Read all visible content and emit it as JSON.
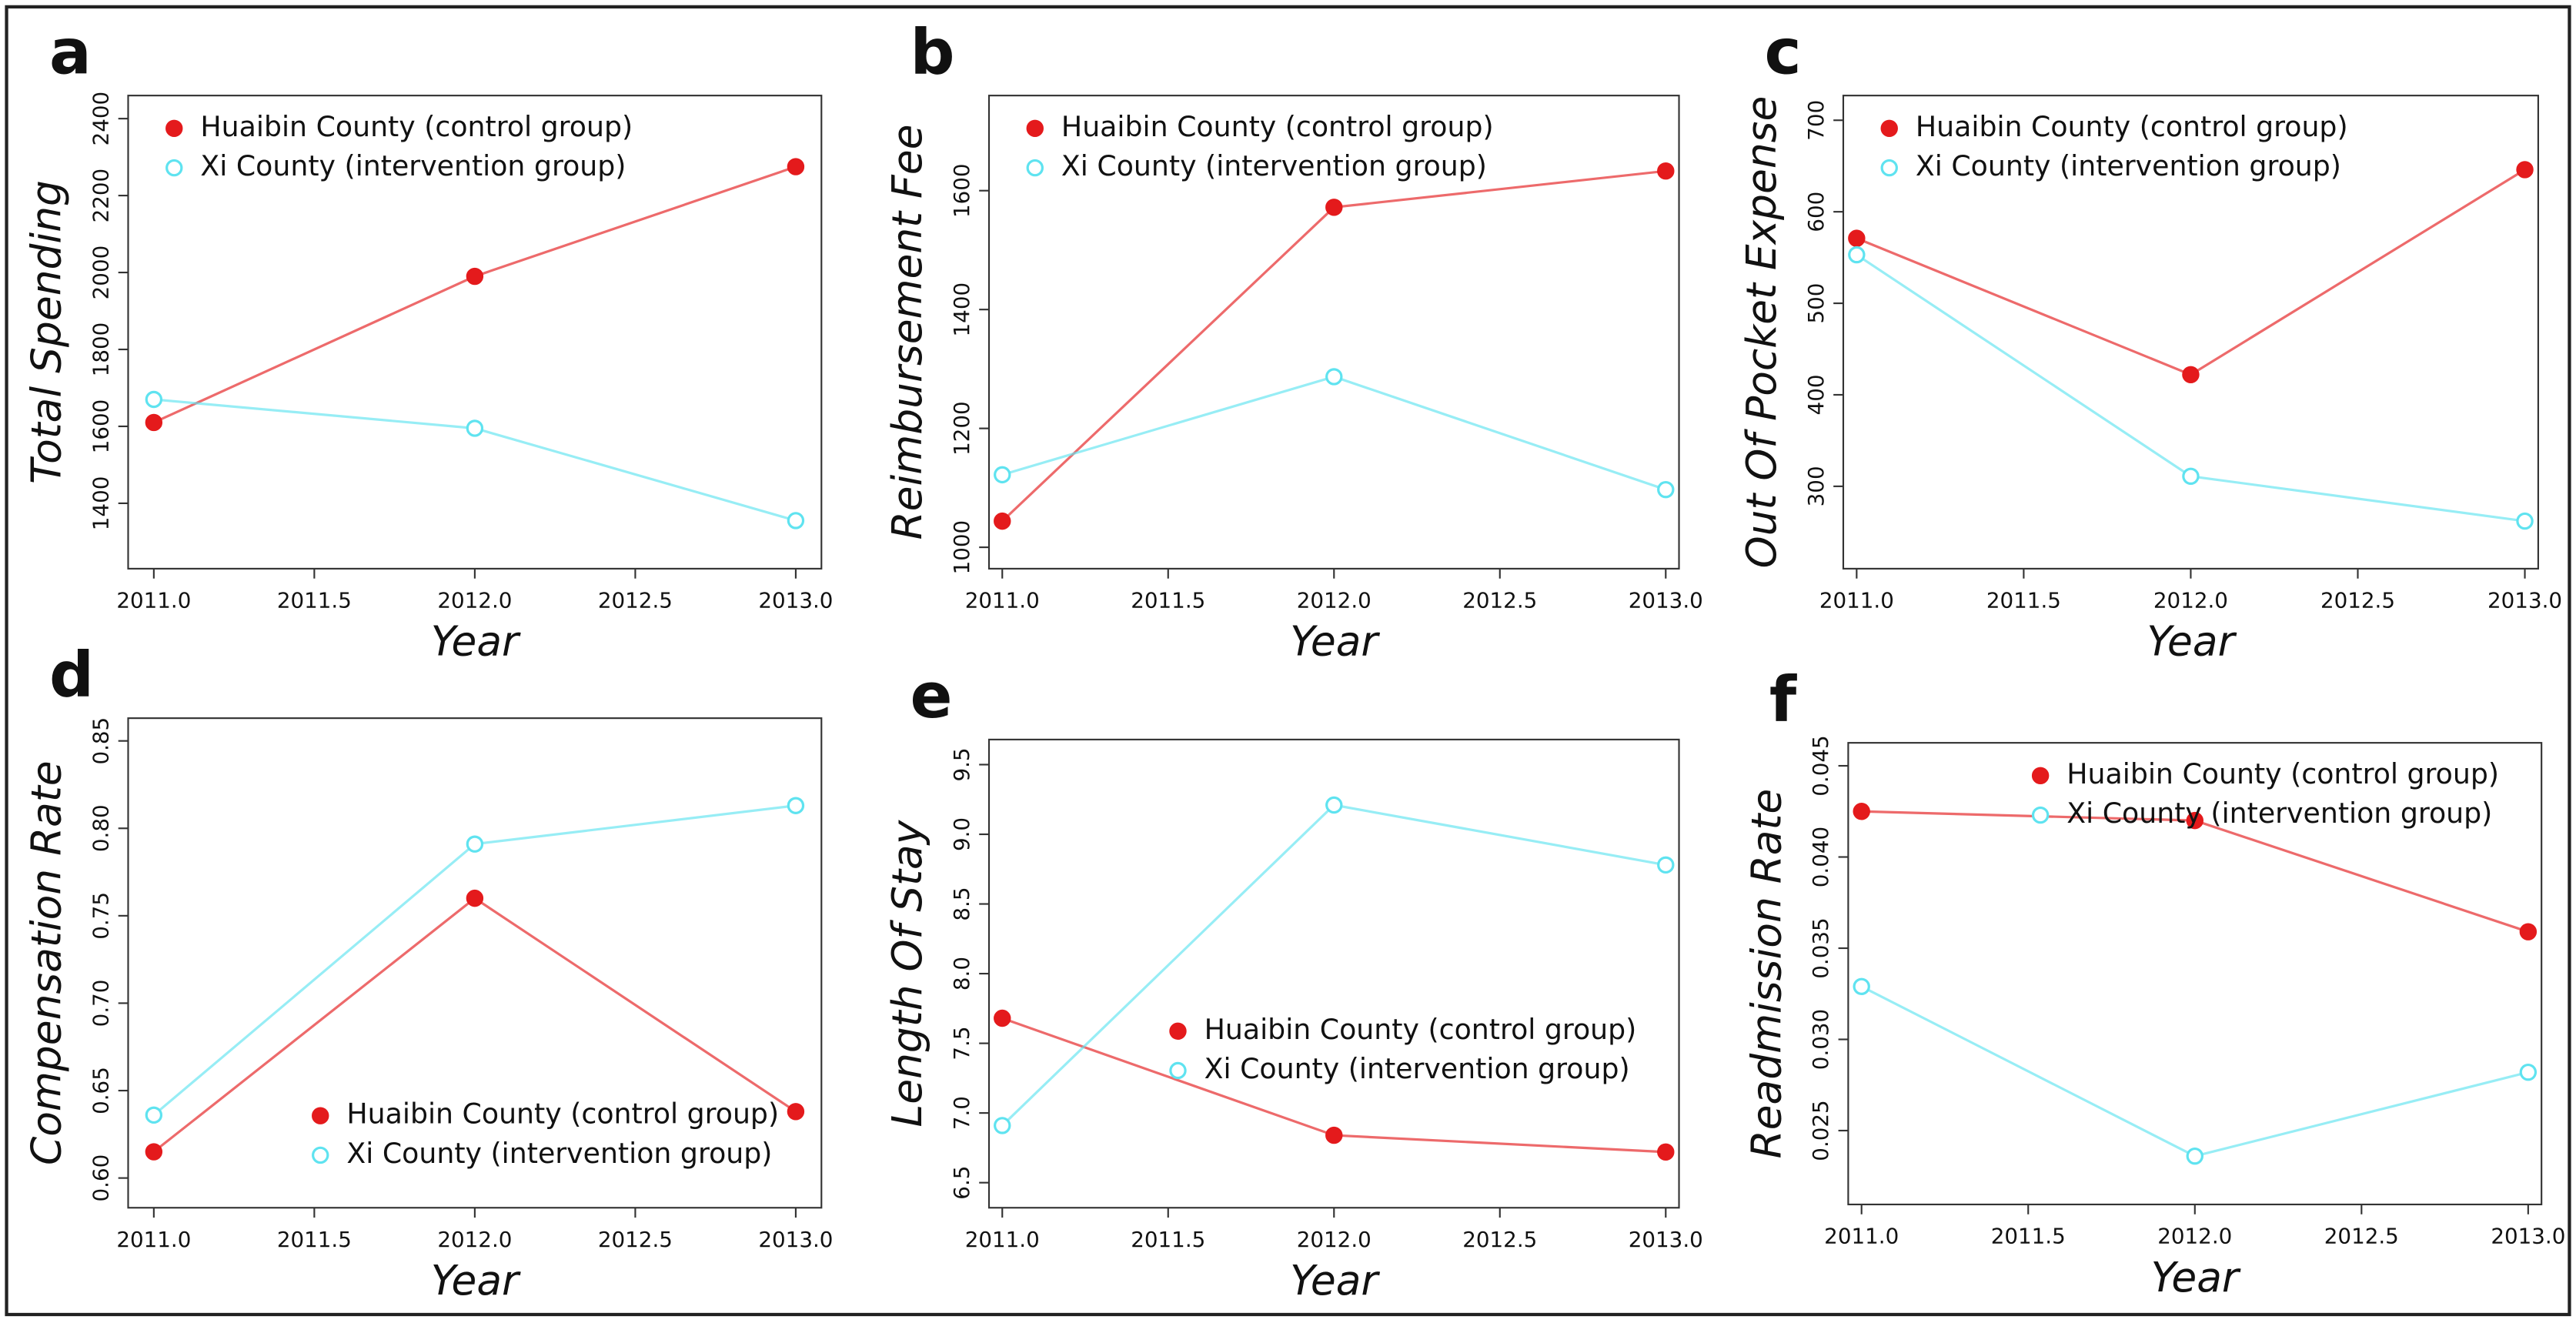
{
  "chart_data": [
    {
      "type": "line",
      "panel": "a",
      "ylabel": "Total Spending",
      "xlabel": "Year",
      "x": [
        2011,
        2012,
        2013
      ],
      "xlim": [
        2010.92,
        2013.08
      ],
      "xticks": [
        {
          "value": 2011,
          "label": "2011.0"
        },
        {
          "value": 2011.5,
          "label": "2011.5"
        },
        {
          "value": 2012,
          "label": "2012.0"
        },
        {
          "value": 2012.5,
          "label": "2012.5"
        },
        {
          "value": 2013,
          "label": "2013.0"
        }
      ],
      "ylim": [
        1230,
        2460
      ],
      "yticks": [
        1400,
        1600,
        1800,
        2000,
        2200,
        2400
      ],
      "legend": "top-left",
      "series": [
        {
          "name": "Huaibin County (control group)",
          "color": "#e41a1c",
          "marker": "filled",
          "values": [
            1610,
            1990,
            2275
          ]
        },
        {
          "name": "Xi County (intervention group)",
          "color": "#5fe3f0",
          "marker": "open",
          "values": [
            1670,
            1595,
            1355
          ]
        }
      ]
    },
    {
      "type": "line",
      "panel": "b",
      "ylabel": "Reimbursement Fee",
      "xlabel": "Year",
      "x": [
        2011,
        2012,
        2013
      ],
      "xlim": [
        2010.96,
        2013.04
      ],
      "xticks": [
        {
          "value": 2011,
          "label": "2011.0"
        },
        {
          "value": 2011.5,
          "label": "2011.5"
        },
        {
          "value": 2012,
          "label": "2012.0"
        },
        {
          "value": 2012.5,
          "label": "2012.5"
        },
        {
          "value": 2013,
          "label": "2013.0"
        }
      ],
      "ylim": [
        964,
        1760
      ],
      "yticks": [
        1000,
        1200,
        1400,
        1600
      ],
      "legend": "top-left",
      "series": [
        {
          "name": "Huaibin County (control group)",
          "color": "#e41a1c",
          "marker": "filled",
          "values": [
            1044,
            1572,
            1633
          ]
        },
        {
          "name": "Xi County (intervention group)",
          "color": "#5fe3f0",
          "marker": "open",
          "values": [
            1122,
            1287,
            1097
          ]
        }
      ]
    },
    {
      "type": "line",
      "panel": "c",
      "ylabel": "Out Of Pocket Expense",
      "xlabel": "Year",
      "x": [
        2011,
        2012,
        2013
      ],
      "xlim": [
        2010.96,
        2013.04
      ],
      "xticks": [
        {
          "value": 2011,
          "label": "2011.0"
        },
        {
          "value": 2011.5,
          "label": "2011.5"
        },
        {
          "value": 2012,
          "label": "2012.0"
        },
        {
          "value": 2012.5,
          "label": "2012.5"
        },
        {
          "value": 2013,
          "label": "2013.0"
        }
      ],
      "ylim": [
        210,
        727
      ],
      "yticks": [
        300,
        400,
        500,
        600,
        700
      ],
      "legend": "top-left",
      "series": [
        {
          "name": "Huaibin County (control group)",
          "color": "#e41a1c",
          "marker": "filled",
          "values": [
            571,
            422,
            646
          ]
        },
        {
          "name": "Xi County (intervention group)",
          "color": "#5fe3f0",
          "marker": "open",
          "values": [
            553,
            311,
            262
          ]
        }
      ]
    },
    {
      "type": "line",
      "panel": "d",
      "ylabel": "Compensation Rate",
      "xlabel": "Year",
      "x": [
        2011,
        2012,
        2013
      ],
      "xlim": [
        2010.92,
        2013.08
      ],
      "xticks": [
        {
          "value": 2011,
          "label": "2011.0"
        },
        {
          "value": 2011.5,
          "label": "2011.5"
        },
        {
          "value": 2012,
          "label": "2012.0"
        },
        {
          "value": 2012.5,
          "label": "2012.5"
        },
        {
          "value": 2013,
          "label": "2013.0"
        }
      ],
      "ylim": [
        0.583,
        0.863
      ],
      "yticks": [
        {
          "value": 0.6,
          "label": "0.60"
        },
        0.65,
        {
          "value": 0.7,
          "label": "0.70"
        },
        0.75,
        {
          "value": 0.8,
          "label": "0.80"
        },
        0.85
      ],
      "legend": "bottom-right",
      "series": [
        {
          "name": "Huaibin County (control group)",
          "color": "#e41a1c",
          "marker": "filled",
          "values": [
            0.615,
            0.76,
            0.638
          ]
        },
        {
          "name": "Xi County (intervention group)",
          "color": "#5fe3f0",
          "marker": "open",
          "values": [
            0.636,
            0.791,
            0.813
          ]
        }
      ]
    },
    {
      "type": "line",
      "panel": "e",
      "ylabel": "Length Of Stay",
      "xlabel": "Year",
      "x": [
        2011,
        2012,
        2013
      ],
      "xlim": [
        2010.96,
        2013.04
      ],
      "xticks": [
        {
          "value": 2011,
          "label": "2011.0"
        },
        {
          "value": 2011.5,
          "label": "2011.5"
        },
        {
          "value": 2012,
          "label": "2012.0"
        },
        {
          "value": 2012.5,
          "label": "2012.5"
        },
        {
          "value": 2013,
          "label": "2013.0"
        }
      ],
      "ylim": [
        6.32,
        9.68
      ],
      "yticks": [
        6.5,
        {
          "value": 7,
          "label": "7.0"
        },
        7.5,
        {
          "value": 8,
          "label": "8.0"
        },
        8.5,
        {
          "value": 9,
          "label": "9.0"
        },
        9.5
      ],
      "legend": "center-right",
      "series": [
        {
          "name": "Huaibin County (control group)",
          "color": "#e41a1c",
          "marker": "filled",
          "values": [
            7.68,
            6.84,
            6.72
          ]
        },
        {
          "name": "Xi County (intervention group)",
          "color": "#5fe3f0",
          "marker": "open",
          "values": [
            6.91,
            9.21,
            8.78
          ]
        }
      ]
    },
    {
      "type": "line",
      "panel": "f",
      "ylabel": "Readmission Rate",
      "xlabel": "Year",
      "x": [
        2011,
        2012,
        2013
      ],
      "xlim": [
        2010.96,
        2013.04
      ],
      "xticks": [
        {
          "value": 2011,
          "label": "2011.0"
        },
        {
          "value": 2011.5,
          "label": "2011.5"
        },
        {
          "value": 2012,
          "label": "2012.0"
        },
        {
          "value": 2012.5,
          "label": "2012.5"
        },
        {
          "value": 2013,
          "label": "2013.0"
        }
      ],
      "ylim": [
        0.02095,
        0.04626
      ],
      "yticks": [
        0.025,
        {
          "value": 0.03,
          "label": "0.030"
        },
        0.035,
        {
          "value": 0.04,
          "label": "0.040"
        },
        0.045
      ],
      "legend": "top-right",
      "series": [
        {
          "name": "Huaibin County (control group)",
          "color": "#e41a1c",
          "marker": "filled",
          "values": [
            0.0425,
            0.042,
            0.0359
          ]
        },
        {
          "name": "Xi County (intervention group)",
          "color": "#5fe3f0",
          "marker": "open",
          "values": [
            0.0329,
            0.0236,
            0.0282
          ]
        }
      ]
    }
  ]
}
